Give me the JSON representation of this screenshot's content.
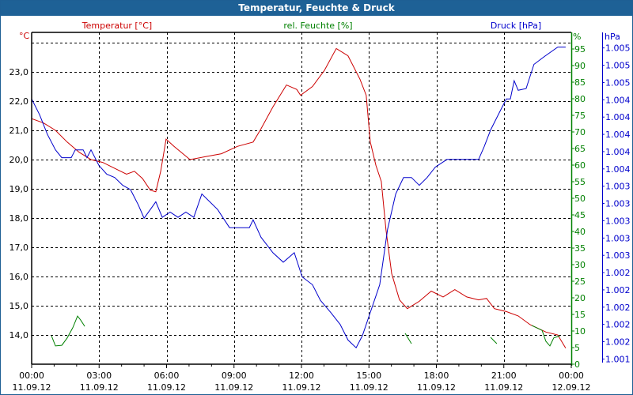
{
  "window": {
    "title": "Temperatur, Feuchte & Druck"
  },
  "chart_data": {
    "type": "line",
    "title": "Temperatur, Feuchte & Druck",
    "x_unit": "hours since 11.09.12 00:00",
    "xlim": [
      0,
      24
    ],
    "x_ticks": [
      {
        "time": "00:00",
        "date": "11.09.12"
      },
      {
        "time": "03:00",
        "date": "11.09.12"
      },
      {
        "time": "06:00",
        "date": "11.09.12"
      },
      {
        "time": "09:00",
        "date": "11.09.12"
      },
      {
        "time": "12:00",
        "date": "11.09.12"
      },
      {
        "time": "15:00",
        "date": "11.09.12"
      },
      {
        "time": "18:00",
        "date": "11.09.12"
      },
      {
        "time": "21:00",
        "date": "11.09.12"
      },
      {
        "time": "00:00",
        "date": "12.09.12"
      }
    ],
    "axes": {
      "temperature": {
        "label": "Temperatur [°C]",
        "unit": "°C",
        "color": "#cc0000",
        "ylim": [
          13.0,
          24.35
        ],
        "ticks": [
          "14,0",
          "15,0",
          "16,0",
          "17,0",
          "18,0",
          "19,0",
          "20,0",
          "21,0",
          "22,0",
          "23,0"
        ],
        "tick_values": [
          14,
          15,
          16,
          17,
          18,
          19,
          20,
          21,
          22,
          23
        ]
      },
      "humidity": {
        "label": "rel. Feuchte [%]",
        "unit": "%",
        "color": "#008000",
        "ylim": [
          0,
          100
        ],
        "ticks": [
          "0",
          "5",
          "10",
          "15",
          "20",
          "25",
          "30",
          "35",
          "40",
          "45",
          "50",
          "55",
          "60",
          "65",
          "70",
          "75",
          "80",
          "85",
          "90",
          "95"
        ],
        "tick_values": [
          0,
          5,
          10,
          15,
          20,
          25,
          30,
          35,
          40,
          45,
          50,
          55,
          60,
          65,
          70,
          75,
          80,
          85,
          90,
          95
        ]
      },
      "pressure": {
        "label": "Druck [hPa]",
        "unit": "hPa",
        "color": "#0000cc",
        "ylim": [
          1001.34,
          1005.18
        ],
        "ticks": [
          "1.001",
          "1.002",
          "1.002",
          "1.002",
          "1.002",
          "1.002",
          "1.003",
          "1.003",
          "1.003",
          "1.003",
          "1.003",
          "1.004",
          "1.004",
          "1.004",
          "1.004",
          "1.004",
          "1.005",
          "1.005",
          "1.005"
        ],
        "tick_values": [
          1001.4,
          1001.6,
          1001.8,
          1002.0,
          1002.2,
          1002.4,
          1002.6,
          1002.8,
          1003.0,
          1003.2,
          1003.4,
          1003.6,
          1003.8,
          1004.0,
          1004.2,
          1004.4,
          1004.6,
          1004.8,
          1005.0
        ]
      }
    },
    "grid": true,
    "series": [
      {
        "name": "Temperatur",
        "axis": "temperature",
        "color": "#cc0000",
        "segments": [
          [
            [
              0,
              21.4
            ],
            [
              0.53,
              21.25
            ],
            [
              1.06,
              21.0
            ],
            [
              1.58,
              20.6
            ],
            [
              2.11,
              20.25
            ],
            [
              2.64,
              20.0
            ],
            [
              3.17,
              19.9
            ],
            [
              3.69,
              19.7
            ],
            [
              4.22,
              19.5
            ],
            [
              4.57,
              19.6
            ],
            [
              4.93,
              19.35
            ],
            [
              5.28,
              18.95
            ],
            [
              5.52,
              18.9
            ],
            [
              5.74,
              19.6
            ],
            [
              5.98,
              20.7
            ],
            [
              6.33,
              20.45
            ],
            [
              7.04,
              20.0
            ],
            [
              7.74,
              20.1
            ],
            [
              8.44,
              20.2
            ],
            [
              9.15,
              20.45
            ],
            [
              9.85,
              20.6
            ],
            [
              10.2,
              21.05
            ],
            [
              10.73,
              21.8
            ],
            [
              11.33,
              22.55
            ],
            [
              11.79,
              22.4
            ],
            [
              11.96,
              22.2
            ],
            [
              12.49,
              22.5
            ],
            [
              13.02,
              23.05
            ],
            [
              13.55,
              23.8
            ],
            [
              14.07,
              23.55
            ],
            [
              14.6,
              22.75
            ],
            [
              14.88,
              22.2
            ],
            [
              15.06,
              20.6
            ],
            [
              15.31,
              19.8
            ],
            [
              15.55,
              19.25
            ],
            [
              15.76,
              17.6
            ],
            [
              16.01,
              16.1
            ],
            [
              16.36,
              15.2
            ],
            [
              16.71,
              14.9
            ],
            [
              17.24,
              15.15
            ],
            [
              17.77,
              15.5
            ],
            [
              18.3,
              15.3
            ],
            [
              18.82,
              15.55
            ],
            [
              19.35,
              15.3
            ],
            [
              19.88,
              15.2
            ],
            [
              20.23,
              15.25
            ],
            [
              20.58,
              14.9
            ],
            [
              21.11,
              14.8
            ],
            [
              21.64,
              14.65
            ],
            [
              22.17,
              14.35
            ],
            [
              22.87,
              14.1
            ],
            [
              23.4,
              14.0
            ],
            [
              23.75,
              13.55
            ]
          ]
        ]
      },
      {
        "name": "rel. Feuchte",
        "axis": "humidity",
        "color": "#008000",
        "segments": [
          [
            [
              0.88,
              8.6
            ],
            [
              1.06,
              5.5
            ],
            [
              1.34,
              5.7
            ],
            [
              1.58,
              7.9
            ],
            [
              1.83,
              11
            ],
            [
              2.04,
              14.5
            ],
            [
              2.18,
              13.3
            ],
            [
              2.36,
              11.4
            ]
          ],
          [
            [
              16.61,
              9.3
            ],
            [
              16.89,
              6.2
            ]
          ],
          [
            [
              20.41,
              8.1
            ],
            [
              20.69,
              6.2
            ]
          ],
          [
            [
              22.24,
              11.7
            ],
            [
              22.7,
              10.2
            ],
            [
              22.87,
              6.9
            ],
            [
              23.05,
              5.5
            ],
            [
              23.22,
              7.9
            ],
            [
              23.5,
              8.6
            ]
          ]
        ]
      },
      {
        "name": "Druck",
        "axis": "pressure",
        "color": "#0000cc",
        "segments": [
          [
            [
              0,
              1004.41
            ],
            [
              0.35,
              1004.23
            ],
            [
              0.7,
              1004.0
            ],
            [
              1.06,
              1003.82
            ],
            [
              1.34,
              1003.73
            ],
            [
              1.76,
              1003.73
            ],
            [
              1.94,
              1003.82
            ],
            [
              2.29,
              1003.82
            ],
            [
              2.46,
              1003.73
            ],
            [
              2.64,
              1003.82
            ],
            [
              2.99,
              1003.64
            ],
            [
              3.34,
              1003.54
            ],
            [
              3.69,
              1003.5
            ],
            [
              4.05,
              1003.41
            ],
            [
              4.4,
              1003.36
            ],
            [
              4.75,
              1003.18
            ],
            [
              5.0,
              1003.03
            ],
            [
              5.28,
              1003.13
            ],
            [
              5.52,
              1003.22
            ],
            [
              5.81,
              1003.04
            ],
            [
              6.16,
              1003.1
            ],
            [
              6.51,
              1003.04
            ],
            [
              6.86,
              1003.1
            ],
            [
              7.21,
              1003.04
            ],
            [
              7.57,
              1003.31
            ],
            [
              7.92,
              1003.22
            ],
            [
              8.27,
              1003.13
            ],
            [
              8.8,
              1002.92
            ],
            [
              9.68,
              1002.92
            ],
            [
              9.85,
              1003.01
            ],
            [
              10.2,
              1002.81
            ],
            [
              10.73,
              1002.63
            ],
            [
              11.19,
              1002.52
            ],
            [
              11.68,
              1002.63
            ],
            [
              12.03,
              1002.35
            ],
            [
              12.49,
              1002.26
            ],
            [
              12.84,
              1002.08
            ],
            [
              13.3,
              1001.94
            ],
            [
              13.72,
              1001.8
            ],
            [
              14.07,
              1001.62
            ],
            [
              14.43,
              1001.53
            ],
            [
              14.71,
              1001.67
            ],
            [
              15.13,
              1001.99
            ],
            [
              15.48,
              1002.26
            ],
            [
              15.83,
              1002.9
            ],
            [
              16.19,
              1003.31
            ],
            [
              16.54,
              1003.5
            ],
            [
              16.89,
              1003.5
            ],
            [
              17.24,
              1003.41
            ],
            [
              17.59,
              1003.5
            ],
            [
              17.95,
              1003.62
            ],
            [
              18.47,
              1003.71
            ],
            [
              19.88,
              1003.71
            ],
            [
              20.13,
              1003.86
            ],
            [
              20.41,
              1004.05
            ],
            [
              20.76,
              1004.23
            ],
            [
              21.11,
              1004.41
            ],
            [
              21.29,
              1004.41
            ],
            [
              21.46,
              1004.62
            ],
            [
              21.64,
              1004.51
            ],
            [
              21.99,
              1004.53
            ],
            [
              22.34,
              1004.81
            ],
            [
              22.8,
              1004.9
            ],
            [
              23.4,
              1005.01
            ],
            [
              23.75,
              1005.01
            ]
          ]
        ]
      }
    ]
  }
}
